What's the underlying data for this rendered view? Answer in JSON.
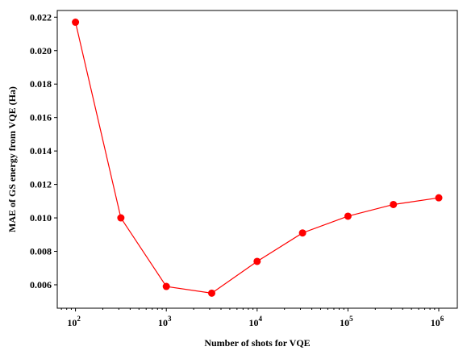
{
  "chart_data": {
    "type": "line",
    "title": "",
    "xlabel": "Number of shots for VQE",
    "ylabel": "MAE of GS energy from VQE (Ha)",
    "xscale": "log",
    "xlim": [
      63,
      1600000
    ],
    "ylim": [
      0.0046,
      0.0224
    ],
    "grid": false,
    "x_ticks": [
      {
        "value": 100,
        "base": "10",
        "exp": "2"
      },
      {
        "value": 1000,
        "base": "10",
        "exp": "3"
      },
      {
        "value": 10000,
        "base": "10",
        "exp": "4"
      },
      {
        "value": 100000,
        "base": "10",
        "exp": "5"
      },
      {
        "value": 1000000,
        "base": "10",
        "exp": "6"
      }
    ],
    "y_ticks": [
      {
        "value": 0.006,
        "label": "0.006"
      },
      {
        "value": 0.008,
        "label": "0.008"
      },
      {
        "value": 0.01,
        "label": "0.010"
      },
      {
        "value": 0.012,
        "label": "0.012"
      },
      {
        "value": 0.014,
        "label": "0.014"
      },
      {
        "value": 0.016,
        "label": "0.016"
      },
      {
        "value": 0.018,
        "label": "0.018"
      },
      {
        "value": 0.02,
        "label": "0.020"
      },
      {
        "value": 0.022,
        "label": "0.022"
      }
    ],
    "series": [
      {
        "color": "#ff0000",
        "marker": "circle",
        "x": [
          100,
          316,
          1000,
          3162,
          10000,
          31623,
          100000,
          316228,
          1000000
        ],
        "y": [
          0.0217,
          0.01,
          0.0059,
          0.0055,
          0.0074,
          0.0091,
          0.0101,
          0.0108,
          0.0112
        ]
      }
    ]
  }
}
